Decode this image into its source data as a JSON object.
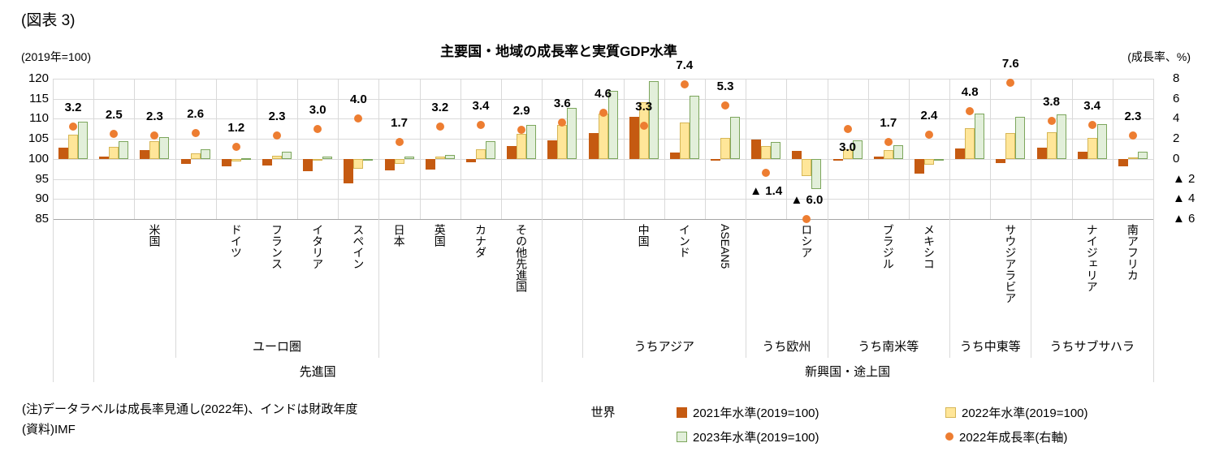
{
  "figure_number": "(図表 3)",
  "title": "主要国・地域の成長率と実質GDP水準",
  "axis_captions": {
    "left": "(2019年=100)",
    "right": "(成長率、%)"
  },
  "notes": {
    "line1": "(注)データラベルは成長率見通し(2022年)、インドは財政年度",
    "line2": "(資料)IMF"
  },
  "colors": {
    "bar2021": "#C55A11",
    "bar2022_fill": "#FFE699",
    "bar2022_border": "#D6B656",
    "bar2023_fill": "#E2EFDA",
    "bar2023_border": "#7CA65C",
    "dot": "#ED7D31",
    "grid": "#D9D9D9",
    "axis": "#A6A6A6"
  },
  "legend": [
    {
      "label": "2021年水準(2019=100)",
      "marker": "square",
      "fill": "#C55A11",
      "border": "#C55A11"
    },
    {
      "label": "2022年水準(2019=100)",
      "marker": "square",
      "fill": "#FFE699",
      "border": "#D6B656"
    },
    {
      "label": "2023年水準(2019=100)",
      "marker": "square",
      "fill": "#E2EFDA",
      "border": "#7CA65C"
    },
    {
      "label": "2022年成長率(右軸)",
      "marker": "circle",
      "fill": "#ED7D31",
      "border": "#ED7D31"
    }
  ],
  "chart_data": {
    "type": "bar",
    "title": "主要国・地域の成長率と実質GDP水準",
    "grid": true,
    "legend_position": "bottom-right",
    "left_axis": {
      "caption": "(2019年=100)",
      "ticks": [
        120,
        115,
        110,
        105,
        100,
        95,
        90,
        85
      ],
      "ylim": [
        85,
        120
      ],
      "bar_baseline": 100
    },
    "right_axis": {
      "caption": "(成長率、%)",
      "tick_labels": [
        "8",
        "6",
        "4",
        "2",
        "0",
        "▲ 2",
        "▲ 4",
        "▲ 6"
      ],
      "ylim": [
        -6,
        8
      ],
      "mapping": "right 0% = left 100, 1% = 2.5 level units"
    },
    "categories": [
      "世界",
      "先進国",
      "米国",
      "ユーロ圏",
      "ドイツ",
      "フランス",
      "イタリア",
      "スペイン",
      "日本",
      "英国",
      "カナダ",
      "その他先進国",
      "新興国・途上国",
      "うちアジア",
      "中国",
      "インド",
      "ASEAN5",
      "うち欧州",
      "ロシア",
      "うち南米等",
      "ブラジル",
      "メキシコ",
      "うち中東等",
      "サウジアラビア",
      "うちサブサハラ",
      "ナイジェリア",
      "南アフリカ"
    ],
    "rotated_tick_labels": [
      "",
      "",
      "米国",
      "",
      "ドイツ",
      "フランス",
      "イタリア",
      "スペイン",
      "日本",
      "英国",
      "カナダ",
      "その他先進国",
      "",
      "",
      "中国",
      "インド",
      "ASEAN5",
      "",
      "ロシア",
      "",
      "ブラジル",
      "メキシコ",
      "",
      "サウジアラビア",
      "",
      "ナイジェリア",
      "南アフリカ"
    ],
    "series": [
      {
        "name": "2021年水準(2019=100)",
        "kind": "bar",
        "values": [
          102.8,
          100.5,
          102.1,
          98.8,
          98.2,
          98.4,
          97.0,
          93.8,
          97.1,
          97.4,
          99.2,
          103.2,
          104.7,
          106.4,
          110.5,
          101.5,
          99.9,
          104.8,
          101.9,
          99.5,
          100.5,
          96.3,
          102.7,
          99.0,
          102.8,
          101.7,
          98.2
        ]
      },
      {
        "name": "2022年水準(2019=100)",
        "kind": "bar",
        "values": [
          106.1,
          103.0,
          104.4,
          101.3,
          99.3,
          100.7,
          99.9,
          97.5,
          98.8,
          100.5,
          102.5,
          106.2,
          108.4,
          111.3,
          114.1,
          109.0,
          105.2,
          103.3,
          95.8,
          102.5,
          102.2,
          98.6,
          107.6,
          106.5,
          106.7,
          105.2,
          100.4
        ]
      },
      {
        "name": "2023年水準(2019=100)",
        "kind": "bar",
        "values": [
          109.2,
          104.4,
          105.5,
          102.5,
          100.1,
          101.7,
          100.6,
          99.5,
          100.5,
          101.0,
          104.4,
          108.5,
          112.7,
          116.9,
          119.4,
          115.7,
          110.5,
          104.2,
          92.4,
          104.6,
          103.4,
          99.8,
          111.4,
          110.4,
          111.0,
          108.6,
          101.8
        ]
      },
      {
        "name": "2022年成長率(右軸)",
        "kind": "scatter",
        "axis": "right",
        "values": [
          3.2,
          2.5,
          2.3,
          2.6,
          1.2,
          2.3,
          3.0,
          4.0,
          1.7,
          3.2,
          3.4,
          2.9,
          3.6,
          4.6,
          3.3,
          7.4,
          5.3,
          -1.4,
          -6.0,
          3.0,
          1.7,
          2.4,
          4.8,
          7.6,
          3.8,
          3.4,
          2.3
        ],
        "labels": [
          "3.2",
          "2.5",
          "2.3",
          "2.6",
          "1.2",
          "2.3",
          "3.0",
          "4.0",
          "1.7",
          "3.2",
          "3.4",
          "2.9",
          "3.6",
          "4.6",
          "3.3",
          "7.4",
          "5.3",
          "▲ 1.4",
          "▲ 6.0",
          "3.0",
          "1.7",
          "2.4",
          "4.8",
          "7.6",
          "3.8",
          "3.4",
          "2.3"
        ]
      }
    ],
    "growth_label_below": [
      17,
      19
    ],
    "multi_level_axis": {
      "level2": [
        {
          "label": "ユーロ圏",
          "start": 3,
          "end": 8
        },
        {
          "label": "うちアジア",
          "start": 13,
          "end": 17
        },
        {
          "label": "うち欧州",
          "start": 17,
          "end": 19
        },
        {
          "label": "うち南米等",
          "start": 19,
          "end": 22
        },
        {
          "label": "うち中東等",
          "start": 22,
          "end": 24
        },
        {
          "label": "うちサブサハラ",
          "start": 24,
          "end": 27
        }
      ],
      "level3": [
        {
          "label": "先進国",
          "start": 1,
          "end": 12
        },
        {
          "label": "新興国・途上国",
          "start": 12,
          "end": 27
        }
      ],
      "level4": [
        {
          "label": "世界",
          "start": 0,
          "end": 27
        }
      ]
    }
  }
}
